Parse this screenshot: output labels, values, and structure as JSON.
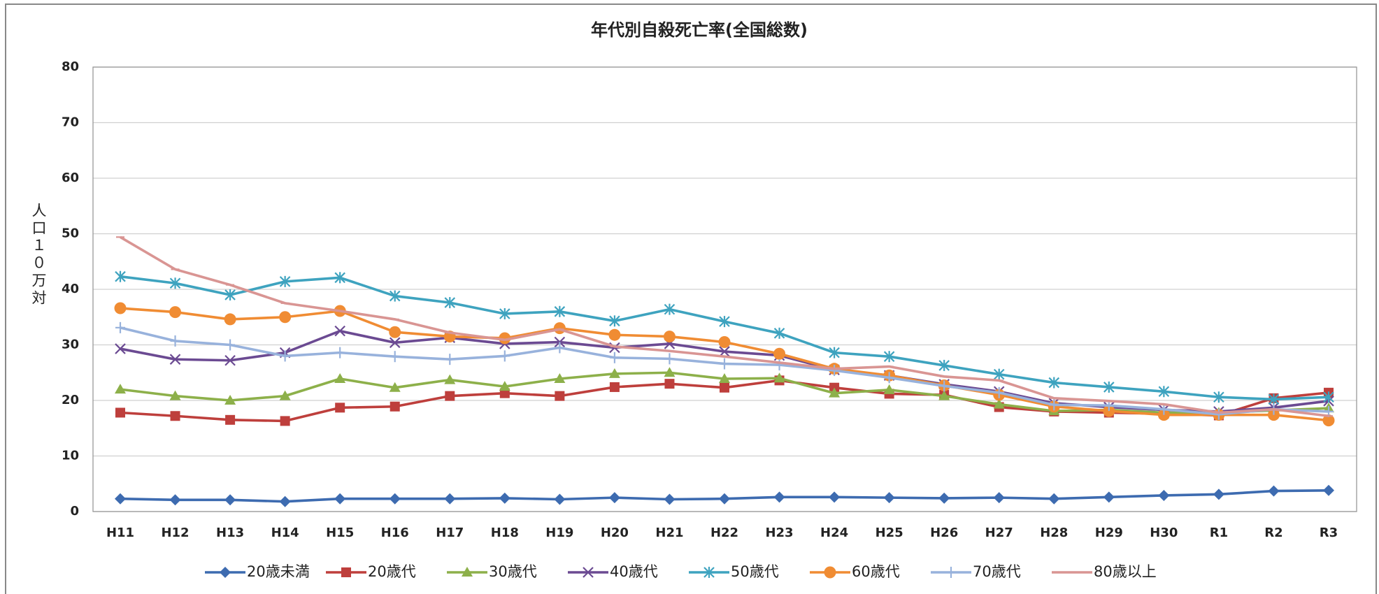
{
  "chart_data": {
    "type": "line",
    "title": "年代別自殺死亡率(全国総数)",
    "y_label": "人口１０万対",
    "categories": [
      "H11",
      "H12",
      "H13",
      "H14",
      "H15",
      "H16",
      "H17",
      "H18",
      "H19",
      "H20",
      "H21",
      "H22",
      "H23",
      "H24",
      "H25",
      "H26",
      "H27",
      "H28",
      "H29",
      "H30",
      "R1",
      "R2",
      "R3"
    ],
    "ylim": [
      0,
      80
    ],
    "yticks": [
      0,
      10,
      20,
      30,
      40,
      50,
      60,
      70,
      80
    ],
    "grid": true,
    "legend": "bottom",
    "series": [
      {
        "name": "20歳未満",
        "color": "#3d6bb0",
        "marker": "diamond",
        "values": [
          2.3,
          2.1,
          2.1,
          1.8,
          2.3,
          2.3,
          2.3,
          2.4,
          2.2,
          2.5,
          2.2,
          2.3,
          2.6,
          2.6,
          2.5,
          2.4,
          2.5,
          2.3,
          2.6,
          2.9,
          3.1,
          3.7,
          3.8
        ]
      },
      {
        "name": "20歳代",
        "color": "#be3f3c",
        "marker": "square",
        "values": [
          17.8,
          17.2,
          16.5,
          16.3,
          18.7,
          18.9,
          20.8,
          21.3,
          20.8,
          22.4,
          23.0,
          22.3,
          23.6,
          22.3,
          21.2,
          21.0,
          18.8,
          18.0,
          17.8,
          17.6,
          17.3,
          20.4,
          21.4
        ]
      },
      {
        "name": "30歳代",
        "color": "#8db04a",
        "marker": "triangle",
        "values": [
          22.0,
          20.8,
          20.0,
          20.8,
          23.9,
          22.3,
          23.7,
          22.5,
          23.9,
          24.8,
          25.0,
          23.9,
          24.0,
          21.3,
          21.9,
          20.8,
          19.3,
          18.1,
          18.3,
          17.8,
          17.8,
          18.2,
          18.6
        ]
      },
      {
        "name": "40歳代",
        "color": "#6b4a92",
        "marker": "x",
        "values": [
          29.3,
          27.4,
          27.2,
          28.6,
          32.5,
          30.4,
          31.3,
          30.2,
          30.5,
          29.5,
          30.2,
          28.8,
          28.1,
          25.5,
          24.5,
          22.9,
          21.6,
          19.5,
          18.8,
          18.3,
          18.0,
          18.7,
          19.9
        ]
      },
      {
        "name": "50歳代",
        "color": "#3ea3bf",
        "marker": "star",
        "values": [
          42.3,
          41.1,
          39.0,
          41.4,
          42.1,
          38.8,
          37.6,
          35.6,
          36.0,
          34.3,
          36.4,
          34.2,
          32.1,
          28.6,
          27.9,
          26.3,
          24.7,
          23.2,
          22.4,
          21.6,
          20.6,
          20.2,
          20.6
        ]
      },
      {
        "name": "60歳代",
        "color": "#f08c33",
        "marker": "circle",
        "values": [
          36.6,
          35.9,
          34.6,
          35.0,
          36.1,
          32.3,
          31.5,
          31.2,
          33.0,
          31.8,
          31.5,
          30.5,
          28.4,
          25.7,
          24.5,
          22.7,
          21.0,
          18.9,
          18.1,
          17.4,
          17.4,
          17.4,
          16.4
        ]
      },
      {
        "name": "70歳代",
        "color": "#98b2dc",
        "marker": "plus",
        "values": [
          33.1,
          30.7,
          30.0,
          28.0,
          28.6,
          27.9,
          27.4,
          28.0,
          29.5,
          27.7,
          27.5,
          26.6,
          26.4,
          25.4,
          24.1,
          22.6,
          21.4,
          19.2,
          19.1,
          18.4,
          17.5,
          18.4,
          18.0
        ]
      },
      {
        "name": "80歳以上",
        "color": "#d99593",
        "marker": "dash",
        "values": [
          49.4,
          43.6,
          40.8,
          37.5,
          36.1,
          34.6,
          32.2,
          30.9,
          32.8,
          29.7,
          28.9,
          27.9,
          26.8,
          25.7,
          26.1,
          24.3,
          23.6,
          20.4,
          19.9,
          19.3,
          17.8,
          18.4,
          17.2
        ]
      }
    ]
  }
}
